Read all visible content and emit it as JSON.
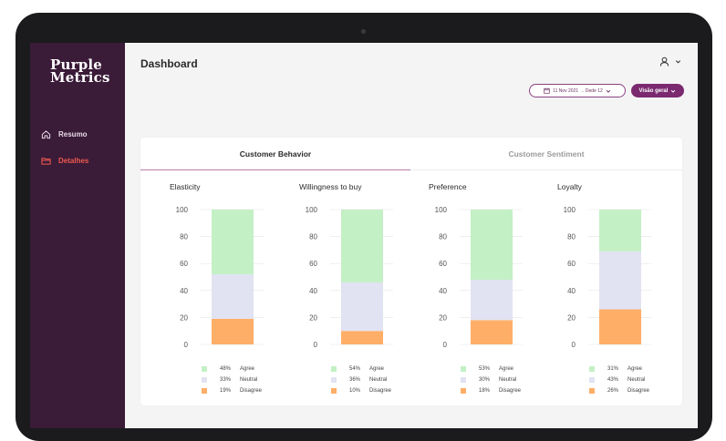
{
  "app": {
    "logo_line1": "Purple",
    "logo_line2": "Metrics",
    "title": "Dashboard"
  },
  "sidebar": {
    "items": [
      {
        "label": "Resumo",
        "icon": "home-icon"
      },
      {
        "label": "Detalhes",
        "icon": "folder-icon",
        "active": true
      }
    ]
  },
  "header": {
    "date_range": "11 Nov 2021 → Dede 12",
    "view_label": "Visão geral"
  },
  "tabs": [
    {
      "label": "Customer Behavior",
      "active": true
    },
    {
      "label": "Customer Sentiment",
      "active": false
    }
  ],
  "colors": {
    "agree": "#c3f0c5",
    "neutral": "#e1e3f2",
    "disagree": "#ffae68",
    "sidebar": "#3a1b38",
    "accent": "#7b2a70"
  },
  "legend_labels": [
    "Agree",
    "Neutral",
    "Disagree"
  ],
  "chart_data": [
    {
      "type": "bar",
      "title": "Elasticity",
      "ylim": [
        0,
        100
      ],
      "yticks": [
        "100",
        "80",
        "60",
        "40",
        "20",
        "0"
      ],
      "series": [
        {
          "name": "Agree",
          "value": 48
        },
        {
          "name": "Neutral",
          "value": 33
        },
        {
          "name": "Disagree",
          "value": 19
        }
      ],
      "labels": [
        "48%",
        "33%",
        "19%"
      ]
    },
    {
      "type": "bar",
      "title": "Willingness to buy",
      "ylim": [
        0,
        100
      ],
      "yticks": [
        "100",
        "80",
        "60",
        "40",
        "20",
        "0"
      ],
      "series": [
        {
          "name": "Agree",
          "value": 54
        },
        {
          "name": "Neutral",
          "value": 36
        },
        {
          "name": "Disagree",
          "value": 10
        }
      ],
      "labels": [
        "54%",
        "36%",
        "10%"
      ]
    },
    {
      "type": "bar",
      "title": "Preference",
      "ylim": [
        0,
        100
      ],
      "yticks": [
        "100",
        "80",
        "60",
        "40",
        "20",
        "0"
      ],
      "series": [
        {
          "name": "Agree",
          "value": 53
        },
        {
          "name": "Neutral",
          "value": 30
        },
        {
          "name": "Disagree",
          "value": 18
        }
      ],
      "labels": [
        "53%",
        "30%",
        "18%"
      ]
    },
    {
      "type": "bar",
      "title": "Loyalty",
      "ylim": [
        0,
        100
      ],
      "yticks": [
        "100",
        "80",
        "60",
        "40",
        "20",
        "0"
      ],
      "series": [
        {
          "name": "Agree",
          "value": 31
        },
        {
          "name": "Neutral",
          "value": 43
        },
        {
          "name": "Disagree",
          "value": 26
        }
      ],
      "labels": [
        "31%",
        "43%",
        "26%"
      ]
    }
  ]
}
